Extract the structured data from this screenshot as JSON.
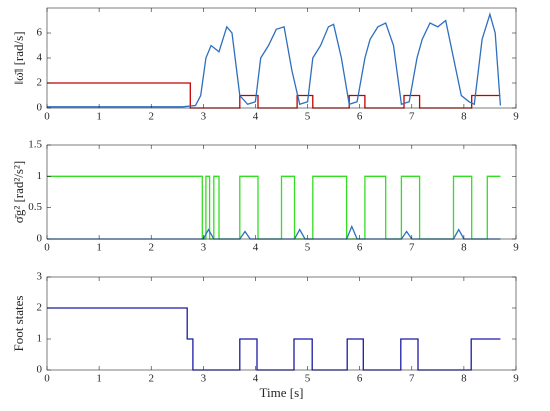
{
  "chart_data": [
    {
      "type": "line",
      "ylabel": "‖ω̄‖ [rad/s]",
      "xlim": [
        0,
        9
      ],
      "xticks": [
        0,
        1,
        2,
        3,
        4,
        5,
        6,
        7,
        8,
        9
      ],
      "ylim": [
        0,
        8
      ],
      "yticks": [
        0,
        2,
        4,
        6
      ],
      "series": [
        {
          "color": "#c00000",
          "x": [
            0,
            2.75,
            2.75,
            3.7,
            3.7,
            4.05,
            4.05,
            4.8,
            4.8,
            5.1,
            5.1,
            5.8,
            5.8,
            6.1,
            6.1,
            6.85,
            6.85,
            7.15,
            7.15,
            8.15,
            8.15,
            8.7
          ],
          "values": [
            2,
            2,
            0,
            0,
            1,
            1,
            0,
            0,
            1,
            1,
            0,
            0,
            1,
            1,
            0,
            0,
            1,
            1,
            0,
            0,
            1,
            1
          ]
        },
        {
          "color": "#2e6fbd",
          "x": [
            0,
            2.6,
            2.85,
            2.95,
            3.05,
            3.15,
            3.3,
            3.45,
            3.55,
            3.7,
            3.85,
            4.0,
            4.1,
            4.25,
            4.4,
            4.55,
            4.7,
            4.85,
            5.0,
            5.1,
            5.25,
            5.4,
            5.5,
            5.65,
            5.8,
            5.95,
            6.1,
            6.2,
            6.35,
            6.5,
            6.65,
            6.8,
            6.95,
            7.1,
            7.2,
            7.35,
            7.5,
            7.65,
            7.8,
            7.95,
            8.1,
            8.2,
            8.35,
            8.5,
            8.6,
            8.7
          ],
          "values": [
            0.1,
            0.1,
            0.2,
            1,
            4,
            5,
            4.5,
            6.5,
            6,
            1,
            0.3,
            0.5,
            4,
            5,
            6.3,
            6.5,
            3,
            0.3,
            0.5,
            4,
            5,
            6.5,
            6.7,
            4,
            0.3,
            0.5,
            4,
            5.5,
            6.5,
            6.8,
            5,
            0.3,
            0.5,
            4,
            5.5,
            6.8,
            6.5,
            7,
            4,
            1,
            0.5,
            0.3,
            5.5,
            7.5,
            6,
            0.2
          ]
        }
      ]
    },
    {
      "type": "line",
      "ylabel": "σ̄g² [rad²/s²]",
      "xlim": [
        0,
        9
      ],
      "xticks": [
        0,
        1,
        2,
        3,
        4,
        5,
        6,
        7,
        8,
        9
      ],
      "ylim": [
        0,
        1.5
      ],
      "yticks": [
        0,
        0.5,
        1,
        1.5
      ],
      "series": [
        {
          "color": "#33dd22",
          "x": [
            0,
            2.98,
            2.98,
            3.05,
            3.05,
            3.12,
            3.12,
            3.2,
            3.2,
            3.3,
            3.3,
            3.7,
            3.7,
            4.05,
            4.05,
            4.5,
            4.5,
            4.75,
            4.75,
            5.1,
            5.1,
            5.75,
            5.75,
            6.1,
            6.1,
            6.5,
            6.5,
            6.8,
            6.8,
            7.15,
            7.15,
            7.8,
            7.8,
            8.15,
            8.15,
            8.45,
            8.45,
            8.7
          ],
          "values": [
            1,
            1,
            0,
            0,
            1,
            1,
            0,
            0,
            1,
            1,
            0,
            0,
            1,
            1,
            0,
            0,
            1,
            1,
            0,
            0,
            1,
            1,
            0,
            0,
            1,
            1,
            0,
            0,
            1,
            1,
            0,
            0,
            1,
            1,
            0,
            0,
            1,
            1
          ]
        },
        {
          "color": "#2e6fbd",
          "x": [
            0,
            3.0,
            3.1,
            3.2,
            3.7,
            3.8,
            3.9,
            4.75,
            4.85,
            4.95,
            5.75,
            5.85,
            5.95,
            6.8,
            6.9,
            7.0,
            7.8,
            7.9,
            8.0,
            8.7
          ],
          "values": [
            0,
            0,
            0.15,
            0,
            0,
            0.12,
            0,
            0,
            0.15,
            0,
            0,
            0.2,
            0,
            0,
            0.12,
            0,
            0,
            0.15,
            0,
            0
          ]
        }
      ]
    },
    {
      "type": "line",
      "ylabel": "Foot states",
      "xlabel": "Time [s]",
      "xlim": [
        0,
        9
      ],
      "xticks": [
        0,
        1,
        2,
        3,
        4,
        5,
        6,
        7,
        8,
        9
      ],
      "ylim": [
        0,
        3
      ],
      "yticks": [
        0,
        1,
        2,
        3
      ],
      "series": [
        {
          "color": "#1a1aa6",
          "x": [
            0,
            2.69,
            2.69,
            2.8,
            2.8,
            3.7,
            3.7,
            4.03,
            4.03,
            4.74,
            4.74,
            5.09,
            5.09,
            5.76,
            5.76,
            6.07,
            6.07,
            6.79,
            6.79,
            7.12,
            7.12,
            8.14,
            8.14,
            8.7
          ],
          "values": [
            2,
            2,
            1,
            1,
            0,
            0,
            1,
            1,
            0,
            0,
            1,
            1,
            0,
            0,
            1,
            1,
            0,
            0,
            1,
            1,
            0,
            0,
            1,
            1
          ]
        }
      ]
    }
  ]
}
